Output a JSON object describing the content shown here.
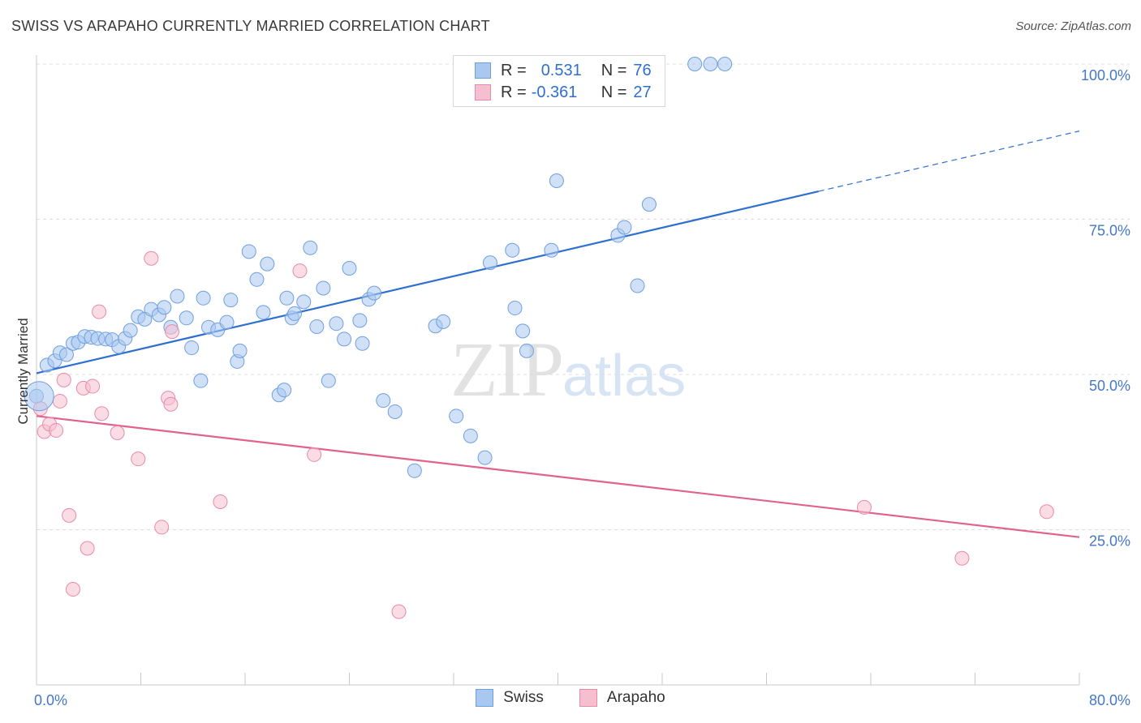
{
  "title": "SWISS VS ARAPAHO CURRENTLY MARRIED CORRELATION CHART",
  "source": "Source: ZipAtlas.com",
  "watermark": {
    "zip": "ZIP",
    "atlas": "atlas"
  },
  "legend": {
    "rows": [
      {
        "r_label": "R =",
        "r_value": "0.531",
        "n_label": "N =",
        "n_value": "76",
        "color": "#a9c8f0",
        "border": "#6f9fe0"
      },
      {
        "r_label": "R =",
        "r_value": "-0.361",
        "n_label": "N =",
        "n_value": "27",
        "color": "#f6bfd0",
        "border": "#e98aaa"
      }
    ]
  },
  "bottom_legend": [
    {
      "label": "Swiss",
      "color": "#a9c8f0",
      "border": "#6f9fe0"
    },
    {
      "label": "Arapaho",
      "color": "#f6bfd0",
      "border": "#e98aaa"
    }
  ],
  "chart_data": {
    "type": "scatter",
    "title": "SWISS VS ARAPAHO CURRENTLY MARRIED CORRELATION CHART",
    "xlabel": "",
    "ylabel": "Currently Married",
    "xlim": [
      0,
      80
    ],
    "ylim": [
      0,
      100
    ],
    "x_tick_labels": [
      "0.0%",
      "80.0%"
    ],
    "y_ticks": [
      25,
      50,
      75,
      100
    ],
    "y_tick_labels": [
      "25.0%",
      "50.0%",
      "75.0%",
      "100.0%"
    ],
    "grid": true,
    "legend_position": "top-center",
    "series": [
      {
        "name": "Swiss",
        "color": "#a9c8f0",
        "stroke": "#6f9fe0",
        "trend": {
          "x0": 0,
          "y0": 50.2,
          "x1": 60,
          "y1": 79.5,
          "dash_to_x": 80,
          "dash_to_y": 89.2,
          "color": "#2f6fcf"
        },
        "points": [
          [
            0.8,
            51.5
          ],
          [
            1.4,
            52.2
          ],
          [
            1.8,
            53.5
          ],
          [
            2.3,
            53.2
          ],
          [
            2.8,
            55.0
          ],
          [
            3.2,
            55.2
          ],
          [
            3.7,
            56.1
          ],
          [
            4.2,
            56.0
          ],
          [
            4.7,
            55.8
          ],
          [
            5.3,
            55.7
          ],
          [
            5.8,
            55.6
          ],
          [
            6.3,
            54.5
          ],
          [
            6.8,
            55.8
          ],
          [
            7.2,
            57.1
          ],
          [
            7.8,
            59.3
          ],
          [
            8.3,
            58.9
          ],
          [
            8.8,
            60.5
          ],
          [
            9.4,
            59.6
          ],
          [
            9.8,
            60.8
          ],
          [
            10.3,
            57.6
          ],
          [
            10.8,
            62.6
          ],
          [
            11.5,
            59.1
          ],
          [
            11.9,
            54.3
          ],
          [
            12.8,
            62.3
          ],
          [
            12.6,
            49.0
          ],
          [
            13.2,
            57.6
          ],
          [
            13.9,
            57.2
          ],
          [
            14.6,
            58.4
          ],
          [
            14.9,
            62.0
          ],
          [
            15.4,
            52.1
          ],
          [
            15.6,
            53.8
          ],
          [
            16.3,
            69.8
          ],
          [
            16.9,
            65.3
          ],
          [
            17.4,
            60.0
          ],
          [
            17.7,
            67.8
          ],
          [
            18.6,
            46.7
          ],
          [
            19.0,
            47.5
          ],
          [
            19.2,
            62.3
          ],
          [
            19.6,
            59.1
          ],
          [
            19.8,
            59.8
          ],
          [
            20.5,
            61.7
          ],
          [
            21.0,
            70.4
          ],
          [
            21.5,
            57.7
          ],
          [
            22.0,
            63.9
          ],
          [
            22.4,
            49.0
          ],
          [
            23.0,
            58.2
          ],
          [
            23.6,
            55.7
          ],
          [
            24.0,
            67.1
          ],
          [
            25.0,
            55.0
          ],
          [
            24.8,
            58.7
          ],
          [
            25.5,
            62.1
          ],
          [
            25.9,
            63.1
          ],
          [
            26.6,
            45.8
          ],
          [
            27.5,
            44.0
          ],
          [
            29.0,
            34.5
          ],
          [
            30.6,
            57.8
          ],
          [
            31.2,
            58.5
          ],
          [
            32.2,
            43.3
          ],
          [
            33.3,
            40.1
          ],
          [
            34.4,
            36.6
          ],
          [
            34.8,
            68.0
          ],
          [
            36.5,
            70.0
          ],
          [
            36.7,
            60.7
          ],
          [
            37.3,
            57.0
          ],
          [
            37.6,
            53.8
          ],
          [
            39.5,
            70.0
          ],
          [
            39.9,
            81.2
          ],
          [
            42.9,
            100.0
          ],
          [
            44.6,
            72.4
          ],
          [
            45.1,
            73.7
          ],
          [
            46.1,
            64.3
          ],
          [
            47.0,
            77.4
          ],
          [
            50.5,
            100.0
          ],
          [
            51.7,
            100.0
          ],
          [
            52.8,
            100.0
          ],
          [
            0.0,
            46.5
          ]
        ]
      },
      {
        "name": "Arapaho",
        "color": "#f6bfd0",
        "stroke": "#e98aaa",
        "trend": {
          "x0": 0,
          "y0": 43.3,
          "x1": 80,
          "y1": 23.8,
          "color": "#e0628f"
        },
        "points": [
          [
            0.3,
            44.5
          ],
          [
            0.6,
            40.8
          ],
          [
            1.0,
            42.0
          ],
          [
            1.5,
            41.0
          ],
          [
            1.8,
            45.7
          ],
          [
            2.1,
            49.1
          ],
          [
            2.5,
            27.3
          ],
          [
            2.8,
            15.4
          ],
          [
            3.6,
            47.8
          ],
          [
            3.9,
            22.0
          ],
          [
            4.3,
            48.1
          ],
          [
            4.8,
            60.1
          ],
          [
            5.0,
            43.7
          ],
          [
            6.2,
            40.6
          ],
          [
            7.8,
            36.4
          ],
          [
            8.8,
            68.7
          ],
          [
            9.6,
            25.4
          ],
          [
            10.1,
            46.2
          ],
          [
            10.3,
            45.2
          ],
          [
            10.4,
            56.9
          ],
          [
            14.1,
            29.5
          ],
          [
            20.2,
            66.7
          ],
          [
            21.3,
            37.1
          ],
          [
            27.8,
            11.8
          ],
          [
            63.5,
            28.6
          ],
          [
            71.0,
            20.4
          ],
          [
            77.5,
            27.9
          ]
        ]
      }
    ]
  }
}
